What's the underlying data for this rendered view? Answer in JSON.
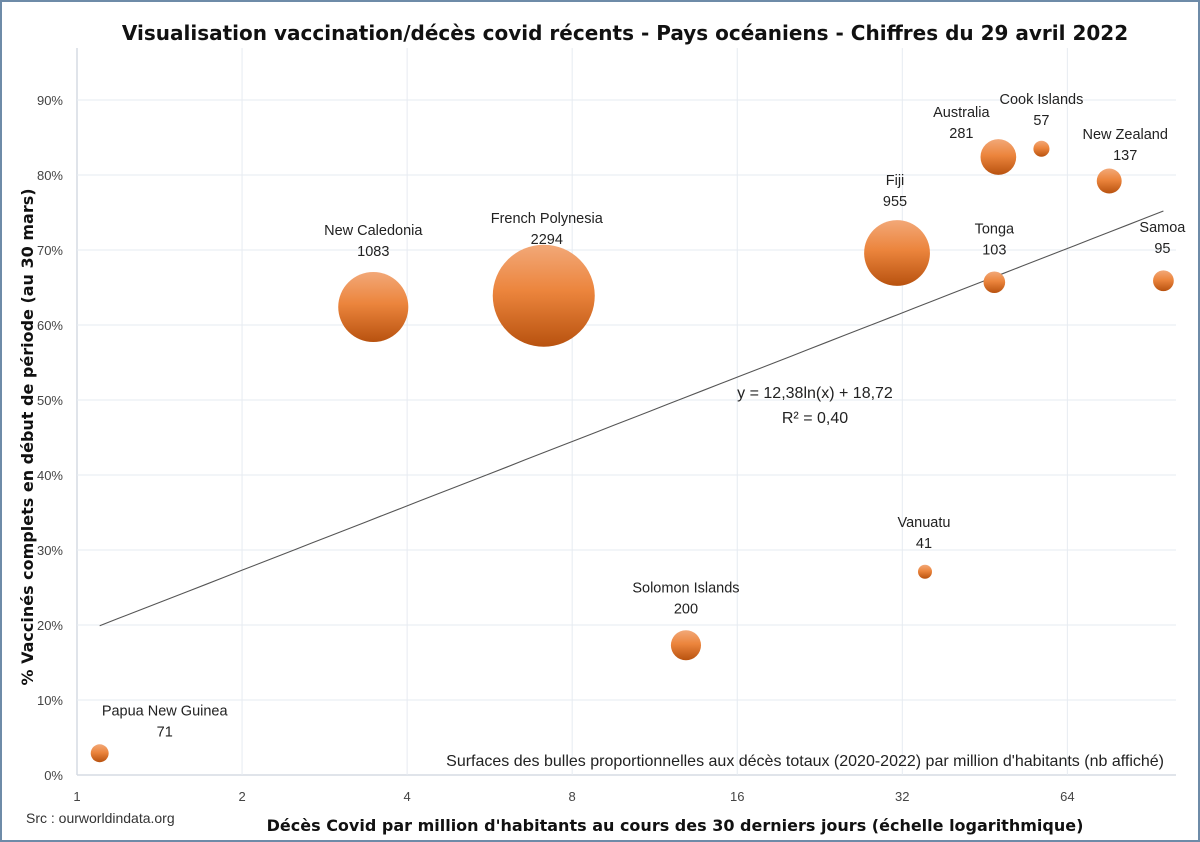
{
  "chart_data": {
    "type": "scatter",
    "subtype": "bubble",
    "title": "Visualisation vaccination/décès covid récents - Pays océaniens - Chiffres du 29 avril 2022",
    "xlabel": "Décès Covid par million d'habitants au cours des 30 derniers jours (échelle logarithmique)",
    "ylabel": "% Vaccinés complets en début de période (au 30 mars)",
    "xscale": "log2",
    "xlim": [
      1,
      101
    ],
    "ylim": [
      0,
      0.9
    ],
    "x_ticks": [
      1,
      2,
      4,
      8,
      16,
      32,
      64
    ],
    "x_tick_labels": [
      "1",
      "2",
      "4",
      "8",
      "16",
      "32",
      "64"
    ],
    "y_ticks": [
      0,
      0.1,
      0.2,
      0.3,
      0.4,
      0.5,
      0.6,
      0.7,
      0.8,
      0.9
    ],
    "y_tick_labels": [
      "0%",
      "10%",
      "20%",
      "30%",
      "40%",
      "50%",
      "60%",
      "70%",
      "80%",
      "90%"
    ],
    "grid": true,
    "bubble_color": "#e8823a",
    "bubble_size_meaning": "Surfaces des bulles proportionnelles aux décès totaux (2020-2022) par million d'habitants (nb affiché)",
    "points": [
      {
        "name": "Papua New Guinea",
        "x": 1.1,
        "y": 0.029,
        "size": 71
      },
      {
        "name": "New Caledonia",
        "x": 3.47,
        "y": 0.624,
        "size": 1083
      },
      {
        "name": "French Polynesia",
        "x": 7.1,
        "y": 0.639,
        "size": 2294
      },
      {
        "name": "Solomon Islands",
        "x": 12.9,
        "y": 0.173,
        "size": 200
      },
      {
        "name": "Vanuatu",
        "x": 35.2,
        "y": 0.271,
        "size": 41
      },
      {
        "name": "Fiji",
        "x": 31.3,
        "y": 0.696,
        "size": 955
      },
      {
        "name": "Australia",
        "x": 47.9,
        "y": 0.824,
        "size": 281
      },
      {
        "name": "Cook Islands",
        "x": 57.4,
        "y": 0.835,
        "size": 57
      },
      {
        "name": "New Zealand",
        "x": 76.3,
        "y": 0.792,
        "size": 137
      },
      {
        "name": "Tonga",
        "x": 47.1,
        "y": 0.657,
        "size": 103
      },
      {
        "name": "Samoa",
        "x": 95.8,
        "y": 0.659,
        "size": 95
      }
    ],
    "trendline": {
      "type": "logarithmic",
      "a": 12.38,
      "b": 18.72,
      "x_range": [
        1.1,
        95.8
      ],
      "equation_label": "y = 12,38ln(x) + 18,72",
      "r2_label": "R² = 0,40"
    },
    "annotations": {
      "bubble_note": "Surfaces des bulles proportionnelles aux décès totaux (2020-2022) par million d'habitants (nb affiché)",
      "source": "Src : ourworldindata.org"
    }
  }
}
